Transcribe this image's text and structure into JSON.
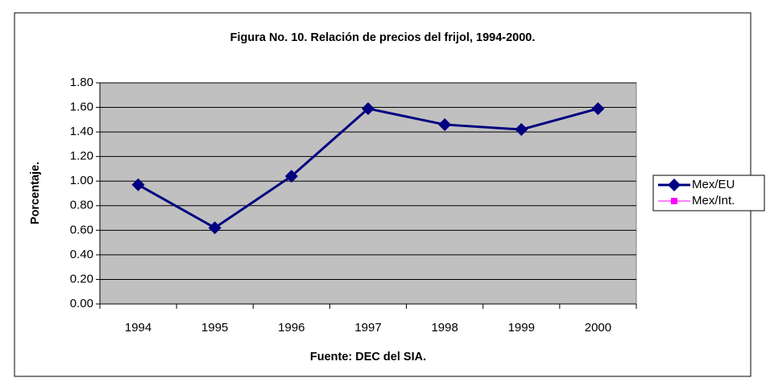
{
  "chart_data": {
    "type": "line",
    "title": "Figura No. 10. Relación de precios del frijol, 1994-2000.",
    "y_label": "Porcentaje.",
    "x_label": "Fuente: DEC del SIA.",
    "categories": [
      "1994",
      "1995",
      "1996",
      "1997",
      "1998",
      "1999",
      "2000"
    ],
    "series": [
      {
        "name": "Mex/EU",
        "color": "#000080",
        "values": [
          0.97,
          0.62,
          1.04,
          1.59,
          1.46,
          1.42,
          1.59
        ]
      },
      {
        "name": "Mex/Int.",
        "color": "#ff00ff",
        "values": [
          null,
          null,
          null,
          null,
          null,
          null,
          null
        ]
      }
    ],
    "ylim": [
      0,
      1.8
    ],
    "yticks": [
      {
        "value": 0,
        "label": "0.00"
      },
      {
        "value": 0.2,
        "label": "0.20"
      },
      {
        "value": 0.4,
        "label": "0.40"
      },
      {
        "value": 0.6,
        "label": "0.60"
      },
      {
        "value": 0.8,
        "label": "0.80"
      },
      {
        "value": 1,
        "label": "1.00"
      },
      {
        "value": 1.2,
        "label": "1.20"
      },
      {
        "value": 1.4,
        "label": "1.40"
      },
      {
        "value": 1.6,
        "label": "1.60"
      },
      {
        "value": 1.8,
        "label": "1.80"
      }
    ],
    "grid": true,
    "plot_background": "#c0c0c0",
    "legend": "right"
  }
}
